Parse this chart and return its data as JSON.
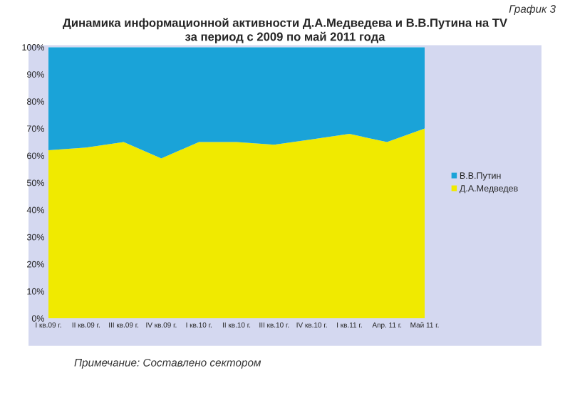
{
  "chart_data": {
    "type": "area",
    "stacked": true,
    "title": "Динамика информационной активности Д.А.Медведева и В.В.Путина на TV\nза период с 2009 по май 2011 года",
    "annotations": [
      "График 3",
      "Примечание: Составлено сектором"
    ],
    "categories": [
      "I кв.09 г.",
      "II кв.09 г.",
      "III кв.09 г.",
      "IV кв.09 г.",
      "I кв.10 г.",
      "II кв.10 г.",
      "III кв.10 г.",
      "IV кв.10 г.",
      "I кв.11 г.",
      "Апр. 11 г.",
      "Май 11 г."
    ],
    "series": [
      {
        "name": "Д.А.Медведев",
        "color": "#f0ea00",
        "values": [
          62,
          63,
          65,
          59,
          65,
          65,
          64,
          66,
          68,
          65,
          70
        ]
      },
      {
        "name": "В.В.Путин",
        "color": "#1aa3d8",
        "values": [
          38,
          37,
          35,
          41,
          35,
          35,
          36,
          34,
          32,
          35,
          30
        ]
      }
    ],
    "ylim": [
      0,
      100
    ],
    "yticks": [
      {
        "value": 0,
        "label": "0%"
      },
      {
        "value": 10,
        "label": "10%"
      },
      {
        "value": 20,
        "label": "20%"
      },
      {
        "value": 30,
        "label": "30%"
      },
      {
        "value": 40,
        "label": "40%"
      },
      {
        "value": 50,
        "label": "50%"
      },
      {
        "value": 60,
        "label": "60%"
      },
      {
        "value": 70,
        "label": "70%"
      },
      {
        "value": 80,
        "label": "80%"
      },
      {
        "value": 90,
        "label": "90%"
      },
      {
        "value": 100,
        "label": "100%"
      }
    ],
    "legend": "right"
  }
}
